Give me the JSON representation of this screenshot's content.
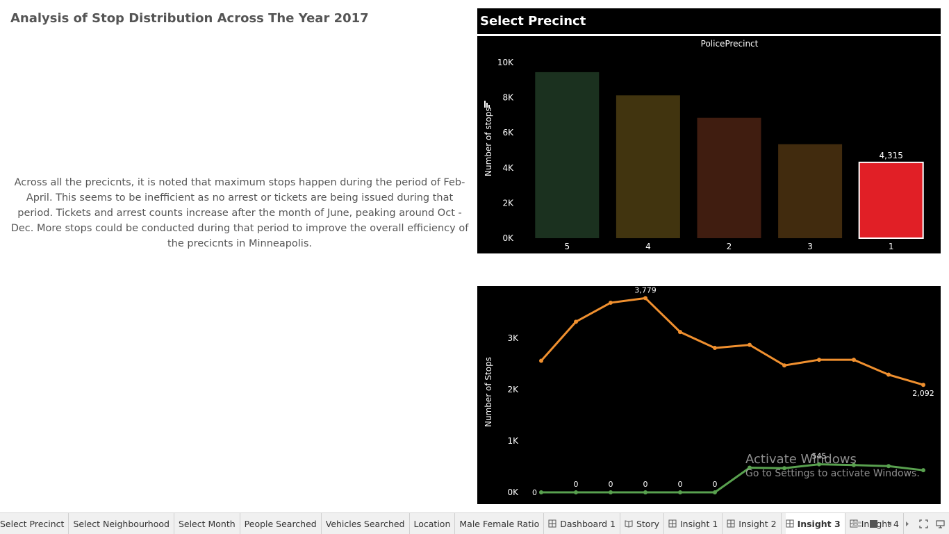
{
  "title": "Analysis of Stop Distribution Across The Year 2017",
  "insight_text": "Across all the precicnts, it is noted that maximum stops happen during the period of Feb-April. This seems to be inefficient as no arrest or tickets are being issued during that period. Tickets and arrest counts increase after the month of June, peaking around Oct -Dec. More stops could be conducted during that period to improve the overall efficiency of the precicnts in Minneapolis.",
  "precinct_panel": {
    "header": "Select Precinct",
    "chart_data": {
      "type": "bar",
      "title": "PolicePrecinct",
      "ylabel": "Number of stops",
      "categories": [
        "5",
        "4",
        "2",
        "3",
        "1"
      ],
      "values": [
        9450,
        8130,
        6850,
        5350,
        4315
      ],
      "highlight_label": "4,315",
      "highlight_index": 4,
      "ylim": [
        0,
        10000
      ],
      "yticks": [
        "0K",
        "2K",
        "4K",
        "6K",
        "8K",
        "10K"
      ],
      "colors": [
        "#1b311f",
        "#41340f",
        "#401d10",
        "#412b0e",
        "#e11f26"
      ]
    }
  },
  "stops_panel": {
    "chart_data": {
      "type": "line",
      "ylabel": "Number of Stops",
      "ylim": [
        0,
        3779
      ],
      "yticks": [
        "0K",
        "1K",
        "2K",
        "3K"
      ],
      "x": [
        "1",
        "2",
        "3",
        "4",
        "5",
        "6",
        "7",
        "8",
        "9",
        "10",
        "11",
        "12"
      ],
      "series": [
        {
          "values": [
            2560,
            3320,
            3690,
            3779,
            3120,
            2810,
            2870,
            2470,
            2580,
            2580,
            2290,
            2092
          ],
          "color": "#f0902f"
        },
        {
          "values": [
            0,
            0,
            0,
            0,
            0,
            0,
            480,
            470,
            545,
            530,
            510,
            430
          ],
          "color": "#59a14f"
        }
      ],
      "point_labels": [
        {
          "series": 0,
          "index": 3,
          "text": "3,779"
        },
        {
          "series": 0,
          "index": 11,
          "text": "2,092"
        },
        {
          "series": 1,
          "index": 0,
          "text": "0"
        },
        {
          "series": 1,
          "index": 1,
          "text": "0"
        },
        {
          "series": 1,
          "index": 2,
          "text": "0"
        },
        {
          "series": 1,
          "index": 3,
          "text": "0"
        },
        {
          "series": 1,
          "index": 4,
          "text": "0"
        },
        {
          "series": 1,
          "index": 5,
          "text": "0"
        },
        {
          "series": 1,
          "index": 8,
          "text": "545"
        }
      ]
    }
  },
  "watermark": {
    "line1": "Activate Windows",
    "line2": "Go to Settings to activate Windows."
  },
  "tabs": [
    {
      "label": "Select Precinct",
      "icon": "none"
    },
    {
      "label": "Select Neighbourhood",
      "icon": "none"
    },
    {
      "label": "Select Month",
      "icon": "none"
    },
    {
      "label": "People Searched",
      "icon": "none"
    },
    {
      "label": "Vehicles Searched",
      "icon": "none"
    },
    {
      "label": "Location",
      "icon": "none"
    },
    {
      "label": "Male Female Ratio",
      "icon": "none"
    },
    {
      "label": "Dashboard 1",
      "icon": "dashboard-icon"
    },
    {
      "label": "Story",
      "icon": "story-icon"
    },
    {
      "label": "Insight 1",
      "icon": "dashboard-icon"
    },
    {
      "label": "Insight 2",
      "icon": "dashboard-icon"
    },
    {
      "label": "Insight 3",
      "icon": "dashboard-icon",
      "active": true
    },
    {
      "label": "Insight 4",
      "icon": "dashboard-icon"
    }
  ],
  "tab_controls": [
    "filmstrip-icon",
    "single-sheet-icon",
    "prev-arrow-icon",
    "next-arrow-icon",
    "fullscreen-icon",
    "presentation-icon"
  ]
}
